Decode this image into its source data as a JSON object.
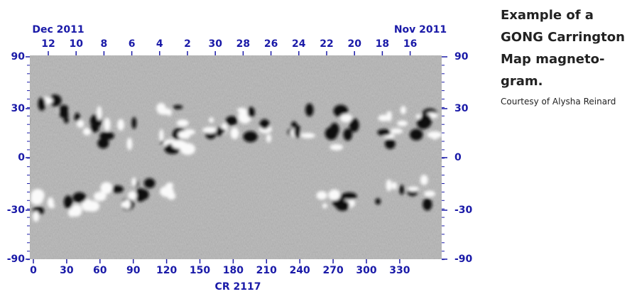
{
  "figure": {
    "top_left_date": "Dec 2011",
    "top_right_date": "Nov 2011",
    "top_ticks": [
      "12",
      "10",
      "8",
      "6",
      "4",
      "2",
      "30",
      "28",
      "26",
      "24",
      "22",
      "20",
      "18",
      "16"
    ],
    "left_ticks": [
      "90",
      "30",
      "0",
      "-30",
      "-90"
    ],
    "right_ticks": [
      "90",
      "30",
      "0",
      "-30",
      "-90"
    ],
    "bottom_ticks": [
      "0",
      "30",
      "60",
      "90",
      "120",
      "150",
      "180",
      "210",
      "240",
      "270",
      "300",
      "330"
    ],
    "bottom_label": "CR 2117"
  },
  "caption": {
    "title_lines": [
      "Example of a",
      "GONG Carrington",
      "Map magneto-",
      "gram."
    ],
    "credit": "Courtesy of Alysha Reinard"
  }
}
